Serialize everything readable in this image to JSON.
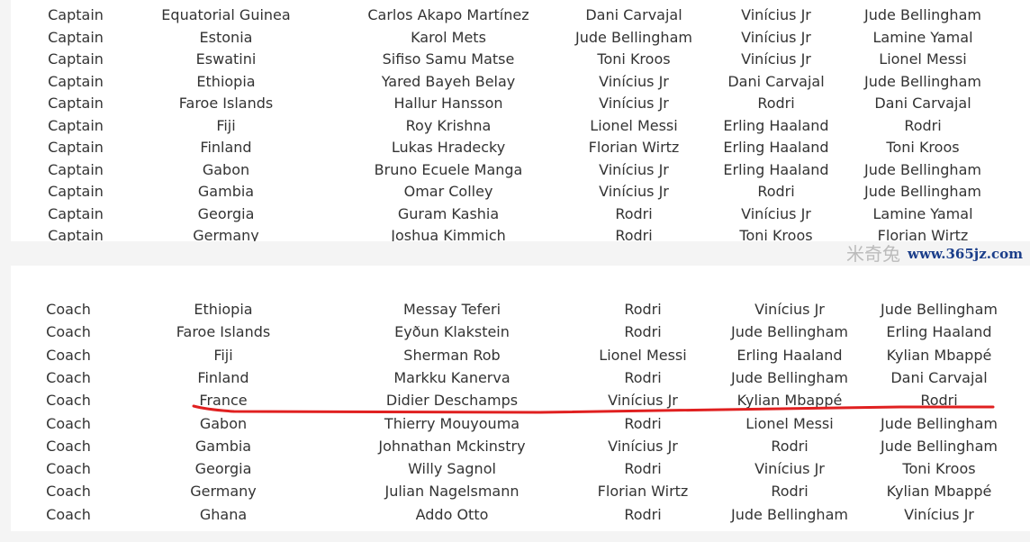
{
  "top_table": {
    "rows": [
      [
        "Captain",
        "Equatorial Guinea",
        "Carlos Akapo Martínez",
        "Dani Carvajal",
        "Vinícius Jr",
        "Jude Bellingham"
      ],
      [
        "Captain",
        "Estonia",
        "Karol Mets",
        "Jude Bellingham",
        "Vinícius Jr",
        "Lamine Yamal"
      ],
      [
        "Captain",
        "Eswatini",
        "Sifiso Samu Matse",
        "Toni Kroos",
        "Vinícius Jr",
        "Lionel Messi"
      ],
      [
        "Captain",
        "Ethiopia",
        "Yared Bayeh Belay",
        "Vinícius Jr",
        "Dani Carvajal",
        "Jude Bellingham"
      ],
      [
        "Captain",
        "Faroe Islands",
        "Hallur Hansson",
        "Vinícius Jr",
        "Rodri",
        "Dani Carvajal"
      ],
      [
        "Captain",
        "Fiji",
        "Roy Krishna",
        "Lionel Messi",
        "Erling Haaland",
        "Rodri"
      ],
      [
        "Captain",
        "Finland",
        "Lukas Hradecky",
        "Florian Wirtz",
        "Erling Haaland",
        "Toni Kroos"
      ],
      [
        "Captain",
        "Gabon",
        "Bruno Ecuele Manga",
        "Vinícius Jr",
        "Erling Haaland",
        "Jude Bellingham"
      ],
      [
        "Captain",
        "Gambia",
        "Omar Colley",
        "Vinícius Jr",
        "Rodri",
        "Jude Bellingham"
      ],
      [
        "Captain",
        "Georgia",
        "Guram Kashia",
        "Rodri",
        "Vinícius Jr",
        "Lamine Yamal"
      ],
      [
        "Captain",
        "Germany",
        "Joshua Kimmich",
        "Rodri",
        "Toni Kroos",
        "Florian Wirtz"
      ]
    ]
  },
  "bottom_table": {
    "rows": [
      [
        "Coach",
        "Ethiopia",
        "Messay Teferi",
        "Rodri",
        "Vinícius Jr",
        "Jude Bellingham"
      ],
      [
        "Coach",
        "Faroe Islands",
        "Eyðun Klakstein",
        "Rodri",
        "Jude Bellingham",
        "Erling Haaland"
      ],
      [
        "Coach",
        "Fiji",
        "Sherman Rob",
        "Lionel Messi",
        "Erling Haaland",
        "Kylian Mbappé"
      ],
      [
        "Coach",
        "Finland",
        "Markku Kanerva",
        "Rodri",
        "Jude Bellingham",
        "Dani Carvajal"
      ],
      [
        "Coach",
        "France",
        "Didier Deschamps",
        "Vinícius Jr",
        "Kylian Mbappé",
        "Rodri"
      ],
      [
        "Coach",
        "Gabon",
        "Thierry Mouyouma",
        "Rodri",
        "Lionel Messi",
        "Jude Bellingham"
      ],
      [
        "Coach",
        "Gambia",
        "Johnathan Mckinstry",
        "Vinícius Jr",
        "Rodri",
        "Jude Bellingham"
      ],
      [
        "Coach",
        "Georgia",
        "Willy Sagnol",
        "Rodri",
        "Vinícius Jr",
        "Toni Kroos"
      ],
      [
        "Coach",
        "Germany",
        "Julian Nagelsmann",
        "Florian Wirtz",
        "Rodri",
        "Kylian Mbappé"
      ],
      [
        "Coach",
        "Ghana",
        "Addo Otto",
        "Rodri",
        "Jude Bellingham",
        "Vinícius Jr"
      ]
    ],
    "highlighted_row": "France",
    "highlight_color": "#e02020"
  },
  "watermark": {
    "url": "www.365jz.com",
    "chars": "米奇兔"
  }
}
